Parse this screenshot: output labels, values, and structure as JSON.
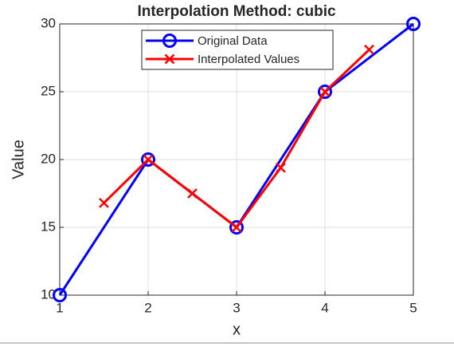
{
  "chart_data": {
    "type": "line",
    "title": "Interpolation Method: cubic",
    "x_label": "x",
    "y_label": "Value",
    "xlim": [
      1,
      5
    ],
    "xticks": [
      1,
      2,
      3,
      4,
      5
    ],
    "ylim": [
      10,
      30
    ],
    "yticks": [
      10,
      15,
      20,
      25,
      30
    ],
    "grid": true,
    "legend": "north",
    "series": [
      {
        "name": "Original Data",
        "color": "#0000ff",
        "marker": "circle",
        "x": [
          1,
          2,
          3,
          4,
          5
        ],
        "values": [
          10,
          20,
          15,
          25,
          30
        ]
      },
      {
        "name": "Interpolated Values",
        "color": "#ff0000",
        "marker": "cross",
        "x": [
          1.5,
          2,
          2.5,
          3,
          3.5,
          4,
          4.5
        ],
        "values": [
          16.8,
          20,
          17.5,
          15,
          19.4,
          25,
          28.1
        ]
      }
    ]
  }
}
